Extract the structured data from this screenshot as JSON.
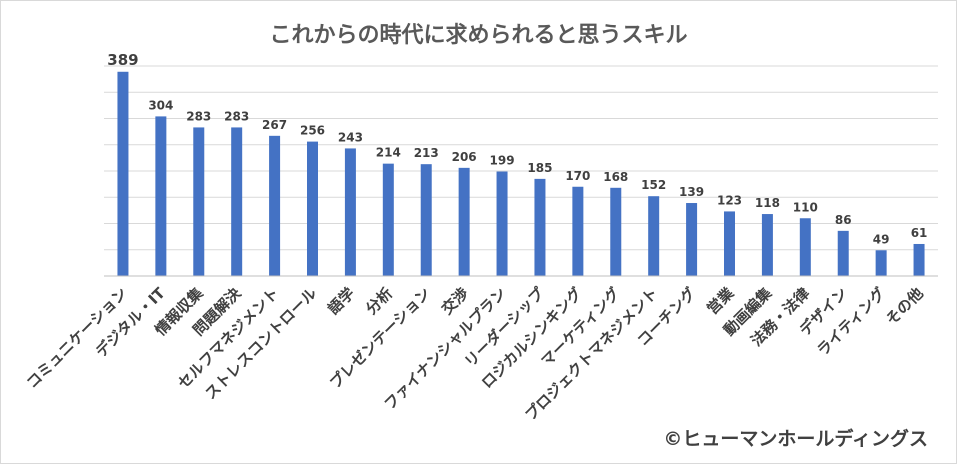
{
  "chart_data": {
    "type": "bar",
    "title": "これからの時代に求められると思うスキル",
    "categories": [
      "コミュニケーション",
      "デジタル・IT",
      "情報収集",
      "問題解決",
      "セルフマネジメント",
      "ストレスコントロール",
      "語学",
      "分析",
      "プレゼンテーション",
      "交渉",
      "ファイナンシャルプラン",
      "リーダーシップ",
      "ロジカルシンキング",
      "マーケティング",
      "プロジェクトマネジメント",
      "コーチング",
      "営業",
      "動画編集",
      "法務・法律",
      "デザイン",
      "ライティング",
      "その他"
    ],
    "values": [
      389,
      304,
      283,
      283,
      267,
      256,
      243,
      214,
      213,
      206,
      199,
      185,
      170,
      168,
      152,
      139,
      123,
      118,
      110,
      86,
      49,
      61
    ],
    "ylim": [
      0,
      400
    ],
    "grid": true,
    "bar_color": "#4472c4"
  },
  "credit": "©ヒューマンホールディングス"
}
